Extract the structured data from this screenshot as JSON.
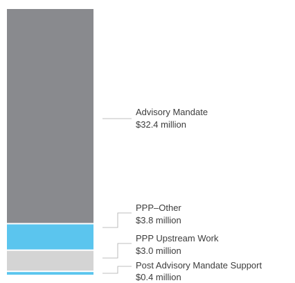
{
  "chart_data": {
    "type": "bar",
    "stacked": true,
    "orientation": "vertical",
    "unit": "million",
    "segments": [
      {
        "name": "Post Advisory Mandate Support",
        "value": 0.4,
        "label": "$0.4 million",
        "color": "#5bc5ee"
      },
      {
        "name": "PPP Upstream Work",
        "value": 3.0,
        "label": "$3.0 million",
        "color": "#d4d4d4"
      },
      {
        "name": "PPP–Other",
        "value": 3.8,
        "label": "$3.8 million",
        "color": "#5bc5ee"
      },
      {
        "name": "Advisory Mandate",
        "value": 32.4,
        "label": "$32.4 million",
        "color": "#898a8e"
      }
    ],
    "leader_color": "#aaaaaa"
  }
}
